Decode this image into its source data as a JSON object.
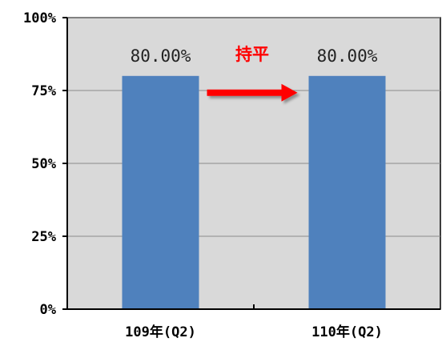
{
  "chart_data": {
    "type": "bar",
    "categories": [
      "109年(Q2)",
      "110年(Q2)"
    ],
    "values": [
      80,
      80
    ],
    "data_labels": [
      "80.00%",
      "80.00%"
    ],
    "ylim": [
      0,
      100
    ],
    "yticks": [
      0,
      25,
      50,
      75,
      100
    ],
    "ytick_labels": [
      "0%",
      "25%",
      "50%",
      "75%",
      "100%"
    ],
    "title": "",
    "xlabel": "",
    "ylabel": "",
    "grid": true,
    "legend": "none",
    "annotation": {
      "text": "持平",
      "arrow": "right",
      "from_category": 0,
      "to_category": 1
    },
    "colors": {
      "bar": "#4f81bd",
      "plot_background": "#d9d9d9",
      "gridline": "#8c8c8c",
      "annotation": "#ff0000"
    }
  }
}
